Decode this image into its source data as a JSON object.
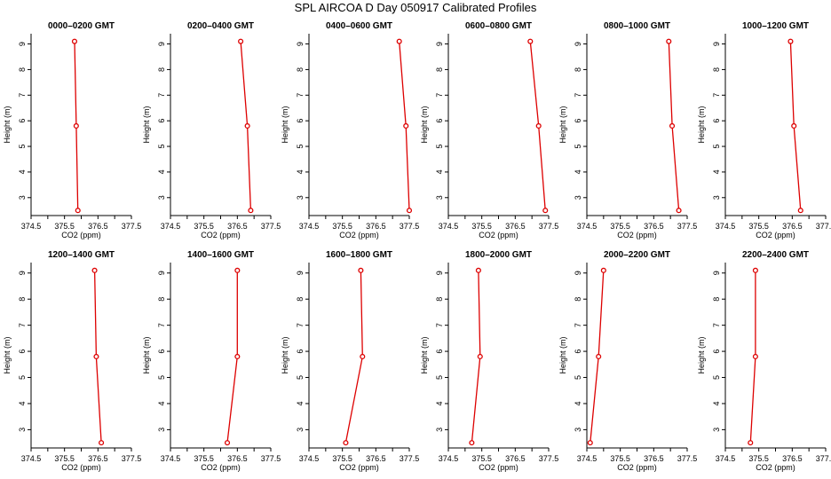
{
  "title": "SPL AIRCOA D  Day 050917  Calibrated Profiles",
  "chart_data": {
    "type": "line",
    "shared": {
      "xlabel": "CO2 (ppm)",
      "ylabel": "Height (m)",
      "xlim": [
        374.5,
        377.5
      ],
      "ylim": [
        2.3,
        9.4
      ],
      "xticks": [
        "374.5",
        "375.5",
        "376.5",
        "377.5",
        "375.0",
        "376.0",
        "377.0"
      ],
      "xticks_num": [
        374.5,
        375.0,
        375.5,
        376.0,
        376.5,
        377.0,
        377.5
      ],
      "xtick_labels": [
        "374.5",
        "375.5",
        "376.5",
        "377.5"
      ],
      "yticks": [
        "3",
        "4",
        "5",
        "6",
        "7",
        "8",
        "9"
      ],
      "line_color": "#dd0000",
      "heights": [
        9.1,
        5.8,
        2.5
      ]
    },
    "panels": [
      {
        "title": "0000–0200 GMT",
        "x": [
          375.8,
          375.85,
          375.9
        ]
      },
      {
        "title": "0200–0400 GMT",
        "x": [
          376.6,
          376.8,
          376.9
        ]
      },
      {
        "title": "0400–0600 GMT",
        "x": [
          377.2,
          377.4,
          377.5
        ]
      },
      {
        "title": "0600–0800 GMT",
        "x": [
          376.95,
          377.2,
          377.4
        ]
      },
      {
        "title": "0800–1000 GMT",
        "x": [
          376.95,
          377.05,
          377.25
        ]
      },
      {
        "title": "1000–1200 GMT",
        "x": [
          376.45,
          376.55,
          376.75
        ]
      },
      {
        "title": "1200–1400 GMT",
        "x": [
          376.4,
          376.45,
          376.6
        ]
      },
      {
        "title": "1400–1600 GMT",
        "x": [
          376.5,
          376.5,
          376.2
        ]
      },
      {
        "title": "1600–1800 GMT",
        "x": [
          376.05,
          376.1,
          375.6
        ]
      },
      {
        "title": "1800–2000 GMT",
        "x": [
          375.4,
          375.45,
          375.2
        ]
      },
      {
        "title": "2000–2200 GMT",
        "x": [
          375.0,
          374.85,
          374.6
        ]
      },
      {
        "title": "2200–2400 GMT",
        "x": [
          375.4,
          375.4,
          375.25
        ]
      }
    ]
  }
}
